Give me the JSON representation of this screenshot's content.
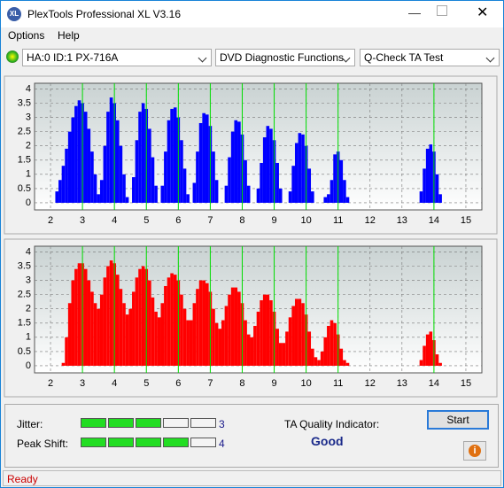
{
  "window": {
    "title": "PlexTools Professional XL V3.16",
    "menu": [
      "Options",
      "Help"
    ],
    "toolbar": {
      "drive": "HA:0 ID:1  PX-716A",
      "function": "DVD Diagnostic Functions",
      "test": "Q-Check TA Test"
    },
    "results": {
      "jitter_label": "Jitter:",
      "jitter": 3,
      "peak_shift_label": "Peak Shift:",
      "peak_shift": 4,
      "scale_max": 5,
      "quality_label": "TA Quality Indicator:",
      "quality": "Good",
      "start": "Start"
    },
    "status": "Ready"
  },
  "chart_data": [
    {
      "type": "bar",
      "color": "#0000ff",
      "xlim": [
        1.5,
        15.5
      ],
      "ylim": [
        -0.25,
        4.2
      ],
      "xticks": [
        2,
        3,
        4,
        5,
        6,
        7,
        8,
        9,
        10,
        11,
        12,
        13,
        14,
        15
      ],
      "yticks": [
        0,
        0.5,
        1,
        1.5,
        2,
        2.5,
        3,
        3.5,
        4
      ],
      "grid": true,
      "markers": [
        3,
        4,
        5,
        6,
        7,
        8,
        9,
        10,
        11,
        14
      ],
      "marker_color": "#00dd00",
      "x": [
        2,
        2.1,
        2.2,
        2.3,
        2.4,
        2.5,
        2.6,
        2.7,
        2.8,
        2.9,
        3,
        3.1,
        3.2,
        3.3,
        3.4,
        3.5,
        3.6,
        3.7,
        3.8,
        3.9,
        4,
        4.1,
        4.2,
        4.3,
        4.4,
        4.5,
        4.6,
        4.7,
        4.8,
        4.9,
        5,
        5.1,
        5.2,
        5.3,
        5.4,
        5.5,
        5.6,
        5.7,
        5.8,
        5.9,
        6,
        6.1,
        6.2,
        6.3,
        6.4,
        6.5,
        6.6,
        6.7,
        6.8,
        6.9,
        7,
        7.1,
        7.2,
        7.3,
        7.4,
        7.5,
        7.6,
        7.7,
        7.8,
        7.9,
        8,
        8.1,
        8.2,
        8.3,
        8.4,
        8.5,
        8.6,
        8.7,
        8.8,
        8.9,
        9,
        9.1,
        9.2,
        9.3,
        9.4,
        9.5,
        9.6,
        9.7,
        9.8,
        9.9,
        10,
        10.1,
        10.2,
        10.3,
        10.4,
        10.5,
        10.6,
        10.7,
        10.8,
        10.9,
        11,
        11.1,
        11.2,
        11.3,
        11.4,
        11.5,
        11.6,
        11.7,
        11.8,
        11.9,
        12,
        12.1,
        12.2,
        12.3,
        12.4,
        12.5,
        12.6,
        12.7,
        12.8,
        12.9,
        13,
        13.1,
        13.2,
        13.3,
        13.4,
        13.5,
        13.6,
        13.7,
        13.8,
        13.9,
        14,
        14.1,
        14.2,
        14.3,
        14.4,
        14.5
      ],
      "values": [
        0,
        0,
        0.4,
        0.8,
        1.3,
        1.9,
        2.5,
        3.0,
        3.4,
        3.6,
        3.5,
        3.2,
        2.6,
        1.8,
        1.0,
        0.3,
        0.8,
        2.0,
        3.2,
        3.7,
        3.5,
        2.9,
        2.0,
        1.0,
        0.2,
        0,
        0.9,
        2.2,
        3.2,
        3.5,
        3.3,
        2.6,
        1.6,
        0.6,
        0,
        0.6,
        1.8,
        2.9,
        3.3,
        3.35,
        3.0,
        2.2,
        1.2,
        0.3,
        0,
        0.7,
        1.8,
        2.8,
        3.15,
        3.1,
        2.7,
        1.8,
        0.8,
        0,
        0,
        0.6,
        1.6,
        2.5,
        2.9,
        2.85,
        2.4,
        1.5,
        0.6,
        0,
        0,
        0.5,
        1.4,
        2.3,
        2.7,
        2.6,
        2.2,
        1.4,
        0.5,
        0,
        0,
        0.4,
        1.3,
        2.1,
        2.45,
        2.4,
        2.0,
        1.2,
        0.4,
        0,
        0,
        0,
        0.2,
        0.3,
        0.8,
        1.7,
        1.8,
        1.5,
        0.8,
        0.2,
        0,
        0,
        0,
        0,
        0,
        0,
        0,
        0,
        0,
        0,
        0,
        0,
        0,
        0,
        0,
        0,
        0,
        0,
        0,
        0,
        0,
        0,
        0.4,
        1.2,
        1.9,
        2.05,
        1.8,
        1.0,
        0.3,
        0,
        0,
        0
      ]
    },
    {
      "type": "bar",
      "color": "#ff0000",
      "xlim": [
        1.5,
        15.5
      ],
      "ylim": [
        -0.25,
        4.2
      ],
      "xticks": [
        2,
        3,
        4,
        5,
        6,
        7,
        8,
        9,
        10,
        11,
        12,
        13,
        14,
        15
      ],
      "yticks": [
        0,
        0.5,
        1,
        1.5,
        2,
        2.5,
        3,
        3.5,
        4
      ],
      "grid": true,
      "markers": [
        3,
        4,
        5,
        6,
        7,
        8,
        9,
        10,
        11,
        14
      ],
      "marker_color": "#00dd00",
      "x": [
        2,
        2.1,
        2.2,
        2.3,
        2.4,
        2.5,
        2.6,
        2.7,
        2.8,
        2.9,
        3,
        3.1,
        3.2,
        3.3,
        3.4,
        3.5,
        3.6,
        3.7,
        3.8,
        3.9,
        4,
        4.1,
        4.2,
        4.3,
        4.4,
        4.5,
        4.6,
        4.7,
        4.8,
        4.9,
        5,
        5.1,
        5.2,
        5.3,
        5.4,
        5.5,
        5.6,
        5.7,
        5.8,
        5.9,
        6,
        6.1,
        6.2,
        6.3,
        6.4,
        6.5,
        6.6,
        6.7,
        6.8,
        6.9,
        7,
        7.1,
        7.2,
        7.3,
        7.4,
        7.5,
        7.6,
        7.7,
        7.8,
        7.9,
        8,
        8.1,
        8.2,
        8.3,
        8.4,
        8.5,
        8.6,
        8.7,
        8.8,
        8.9,
        9,
        9.1,
        9.2,
        9.3,
        9.4,
        9.5,
        9.6,
        9.7,
        9.8,
        9.9,
        10,
        10.1,
        10.2,
        10.3,
        10.4,
        10.5,
        10.6,
        10.7,
        10.8,
        10.9,
        11,
        11.1,
        11.2,
        11.3,
        11.4,
        11.5,
        11.6,
        11.7,
        11.8,
        11.9,
        12,
        12.1,
        12.2,
        12.3,
        12.4,
        12.5,
        12.6,
        12.7,
        12.8,
        12.9,
        13,
        13.1,
        13.2,
        13.3,
        13.4,
        13.5,
        13.6,
        13.7,
        13.8,
        13.9,
        14,
        14.1,
        14.2,
        14.3,
        14.4,
        14.5
      ],
      "values": [
        0,
        0,
        0,
        0,
        0.1,
        1.0,
        2.2,
        3.0,
        3.4,
        3.6,
        3.6,
        3.4,
        3.0,
        2.6,
        2.2,
        2.0,
        2.5,
        3.1,
        3.5,
        3.7,
        3.6,
        3.2,
        2.7,
        2.2,
        1.8,
        2.0,
        2.6,
        3.1,
        3.4,
        3.5,
        3.4,
        3.0,
        2.4,
        1.9,
        1.7,
        2.2,
        2.8,
        3.1,
        3.25,
        3.2,
        3.0,
        2.5,
        2.0,
        1.6,
        1.6,
        2.2,
        2.7,
        3.0,
        3.0,
        2.9,
        2.6,
        2.0,
        1.5,
        1.3,
        1.6,
        2.1,
        2.5,
        2.75,
        2.75,
        2.6,
        2.2,
        1.6,
        1.1,
        1.0,
        1.4,
        1.9,
        2.3,
        2.5,
        2.5,
        2.3,
        1.9,
        1.3,
        0.8,
        0.8,
        1.2,
        1.7,
        2.1,
        2.35,
        2.35,
        2.2,
        1.8,
        1.2,
        0.6,
        0.3,
        0.2,
        0.5,
        1.0,
        1.4,
        1.6,
        1.5,
        1.1,
        0.6,
        0.2,
        0.1,
        0,
        0,
        0,
        0,
        0,
        0,
        0,
        0,
        0,
        0,
        0,
        0,
        0,
        0,
        0,
        0,
        0,
        0,
        0,
        0,
        0,
        0,
        0.2,
        0.7,
        1.1,
        1.2,
        0.9,
        0.4,
        0.1,
        0,
        0,
        0
      ]
    }
  ]
}
